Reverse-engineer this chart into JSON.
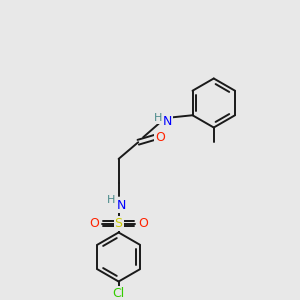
{
  "background_color": "#e8e8e8",
  "bond_color": "#1a1a1a",
  "atom_colors": {
    "N": "#0000ff",
    "H": "#4a8a8a",
    "O": "#ff2200",
    "S": "#cccc00",
    "Cl": "#33cc00",
    "C": "#1a1a1a"
  },
  "figsize": [
    3.0,
    3.0
  ],
  "dpi": 100,
  "lw": 1.4,
  "ring_r": 25
}
